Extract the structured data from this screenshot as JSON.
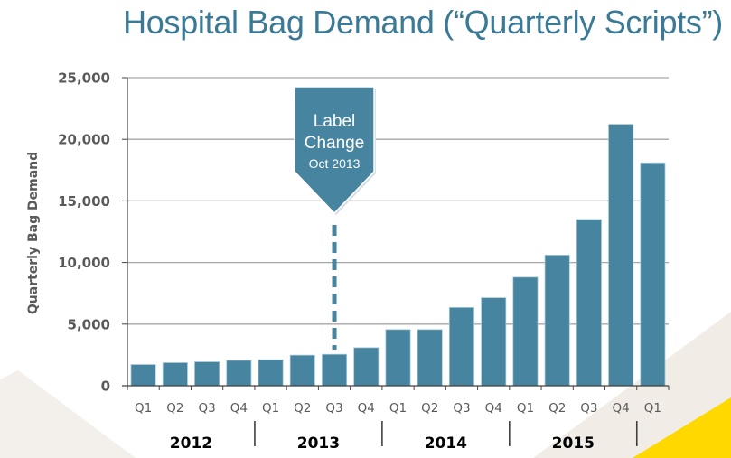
{
  "colors": {
    "title": "#3B7A96",
    "bar": "#47849F",
    "callout": "#47849F",
    "grid": "#A6A6A6",
    "axis": "#404040",
    "accent_yellow": "#FFD800"
  },
  "chart_data": {
    "type": "bar",
    "title": "Hospital Bag Demand (“Quarterly Scripts”)",
    "xlabel": "",
    "ylabel": "Quarterly Bag Demand",
    "ylim": [
      0,
      25000
    ],
    "yticks": [
      0,
      5000,
      10000,
      15000,
      20000,
      25000
    ],
    "ytick_labels": [
      "0",
      "5,000",
      "10,000",
      "15,000",
      "20,000",
      "25,000"
    ],
    "grid": true,
    "categories": [
      "Q1",
      "Q2",
      "Q3",
      "Q4",
      "Q1",
      "Q2",
      "Q3",
      "Q4",
      "Q1",
      "Q2",
      "Q3",
      "Q4",
      "Q1",
      "Q2",
      "Q3",
      "Q4",
      "Q1"
    ],
    "years": [
      {
        "label": "2012",
        "start": 0,
        "end": 4
      },
      {
        "label": "2013",
        "start": 4,
        "end": 8
      },
      {
        "label": "2014",
        "start": 8,
        "end": 12
      },
      {
        "label": "2015",
        "start": 12,
        "end": 16
      }
    ],
    "series": [
      {
        "name": "Quarterly Bag Demand",
        "values": [
          1720,
          1870,
          1940,
          2060,
          2110,
          2480,
          2550,
          3090,
          4560,
          4560,
          6350,
          7140,
          8810,
          10600,
          13500,
          21220,
          18090
        ]
      }
    ],
    "annotations": [
      {
        "lines": [
          "Label",
          "Change",
          "Oct 2013"
        ],
        "category_index": 6,
        "style": "down-arrow callout with dashed line"
      }
    ]
  }
}
